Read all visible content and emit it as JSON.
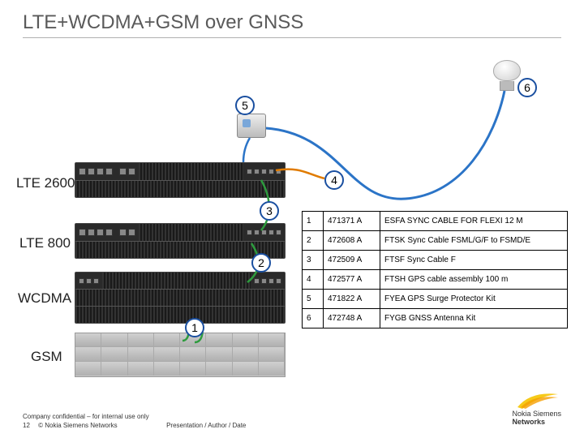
{
  "title": "LTE+WCDMA+GSM over GNSS",
  "tech_labels": {
    "lte2600": "LTE 2600",
    "lte800": "LTE 800",
    "wcdma": "WCDMA",
    "gsm": "GSM"
  },
  "pills": {
    "p1": "1",
    "p2": "2",
    "p3": "3",
    "p4": "4",
    "p5": "5",
    "p6": "6"
  },
  "table": {
    "rows": [
      {
        "n": "1",
        "code": "471371 A",
        "desc": "ESFA SYNC CABLE FOR FLEXI 12 M"
      },
      {
        "n": "2",
        "code": "472608 A",
        "desc": "FTSK Sync Cable FSML/G/F to FSMD/E"
      },
      {
        "n": "3",
        "code": "472509 A",
        "desc": "FTSF Sync Cable F"
      },
      {
        "n": "4",
        "code": "472577 A",
        "desc": "FTSH GPS cable assembly  100 m"
      },
      {
        "n": "5",
        "code": "471822 A",
        "desc": "FYEA GPS Surge Protector Kit"
      },
      {
        "n": "6",
        "code": "472748 A",
        "desc": "FYGB GNSS Antenna Kit"
      }
    ]
  },
  "footer": {
    "line1": "Company confidential – for internal use only",
    "page": "12",
    "copyright": "© Nokia Siemens Networks",
    "center": "Presentation / Author / Date"
  },
  "brand": {
    "l1": "Nokia Siemens",
    "l2": "Networks"
  },
  "style": {
    "pill_border": "#1a4fa0",
    "cable_blue": "#2b74c7",
    "cable_green": "#2e9b3e",
    "cable_orange": "#e07b00"
  }
}
